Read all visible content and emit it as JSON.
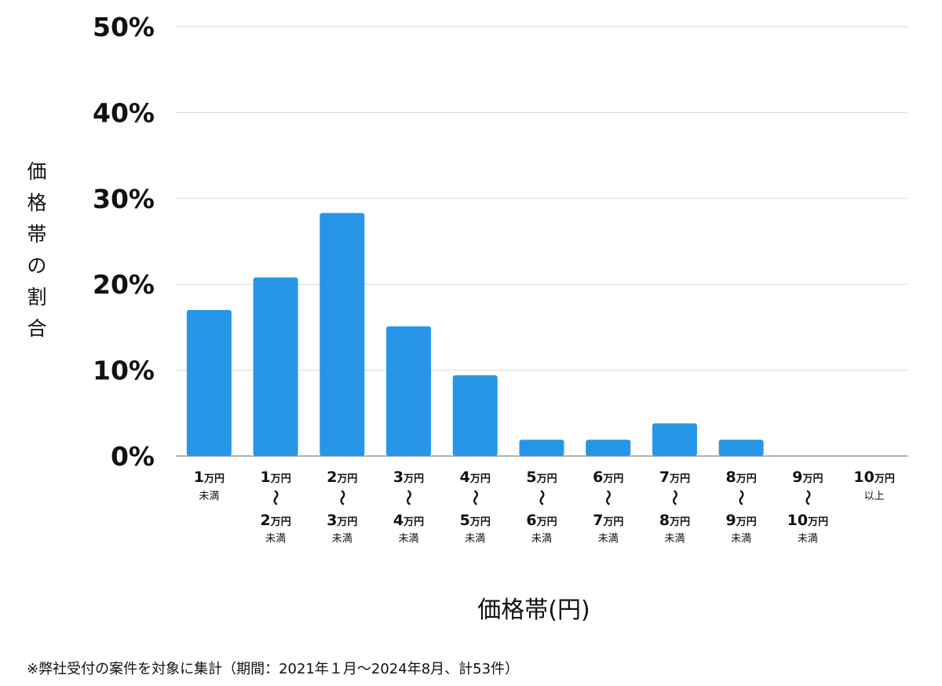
{
  "chart_data": {
    "type": "bar",
    "ylabel": "価格帯の割合",
    "xlabel": "価格帯(円)",
    "ylim": [
      0,
      50
    ],
    "yticks": [
      "0%",
      "10%",
      "20%",
      "30%",
      "40%",
      "50%"
    ],
    "grid": true,
    "bar_color": "#2796e8",
    "categories": [
      {
        "lines": [
          {
            "num": "1",
            "unit": "万円"
          },
          {
            "small": "未満"
          }
        ]
      },
      {
        "lines": [
          {
            "num": "1",
            "unit": "万円"
          },
          {
            "tilde": "〜"
          },
          {
            "num": "2",
            "unit": "万円"
          },
          {
            "small": "未満"
          }
        ]
      },
      {
        "lines": [
          {
            "num": "2",
            "unit": "万円"
          },
          {
            "tilde": "〜"
          },
          {
            "num": "3",
            "unit": "万円"
          },
          {
            "small": "未満"
          }
        ]
      },
      {
        "lines": [
          {
            "num": "3",
            "unit": "万円"
          },
          {
            "tilde": "〜"
          },
          {
            "num": "4",
            "unit": "万円"
          },
          {
            "small": "未満"
          }
        ]
      },
      {
        "lines": [
          {
            "num": "4",
            "unit": "万円"
          },
          {
            "tilde": "〜"
          },
          {
            "num": "5",
            "unit": "万円"
          },
          {
            "small": "未満"
          }
        ]
      },
      {
        "lines": [
          {
            "num": "5",
            "unit": "万円"
          },
          {
            "tilde": "〜"
          },
          {
            "num": "6",
            "unit": "万円"
          },
          {
            "small": "未満"
          }
        ]
      },
      {
        "lines": [
          {
            "num": "6",
            "unit": "万円"
          },
          {
            "tilde": "〜"
          },
          {
            "num": "7",
            "unit": "万円"
          },
          {
            "small": "未満"
          }
        ]
      },
      {
        "lines": [
          {
            "num": "7",
            "unit": "万円"
          },
          {
            "tilde": "〜"
          },
          {
            "num": "8",
            "unit": "万円"
          },
          {
            "small": "未満"
          }
        ]
      },
      {
        "lines": [
          {
            "num": "8",
            "unit": "万円"
          },
          {
            "tilde": "〜"
          },
          {
            "num": "9",
            "unit": "万円"
          },
          {
            "small": "未満"
          }
        ]
      },
      {
        "lines": [
          {
            "num": "9",
            "unit": "万円"
          },
          {
            "tilde": "〜"
          },
          {
            "num": "10",
            "unit": "万円"
          },
          {
            "small": "未満"
          }
        ]
      },
      {
        "lines": [
          {
            "num": "10",
            "unit": "万円"
          },
          {
            "small": "以上"
          }
        ]
      }
    ],
    "values": [
      17.0,
      20.8,
      28.3,
      15.1,
      9.4,
      1.9,
      1.9,
      3.8,
      1.9,
      0,
      0
    ]
  },
  "footnote": "※弊社受付の案件を対象に集計（期間：2021年１月〜2024年8月、計53件）"
}
